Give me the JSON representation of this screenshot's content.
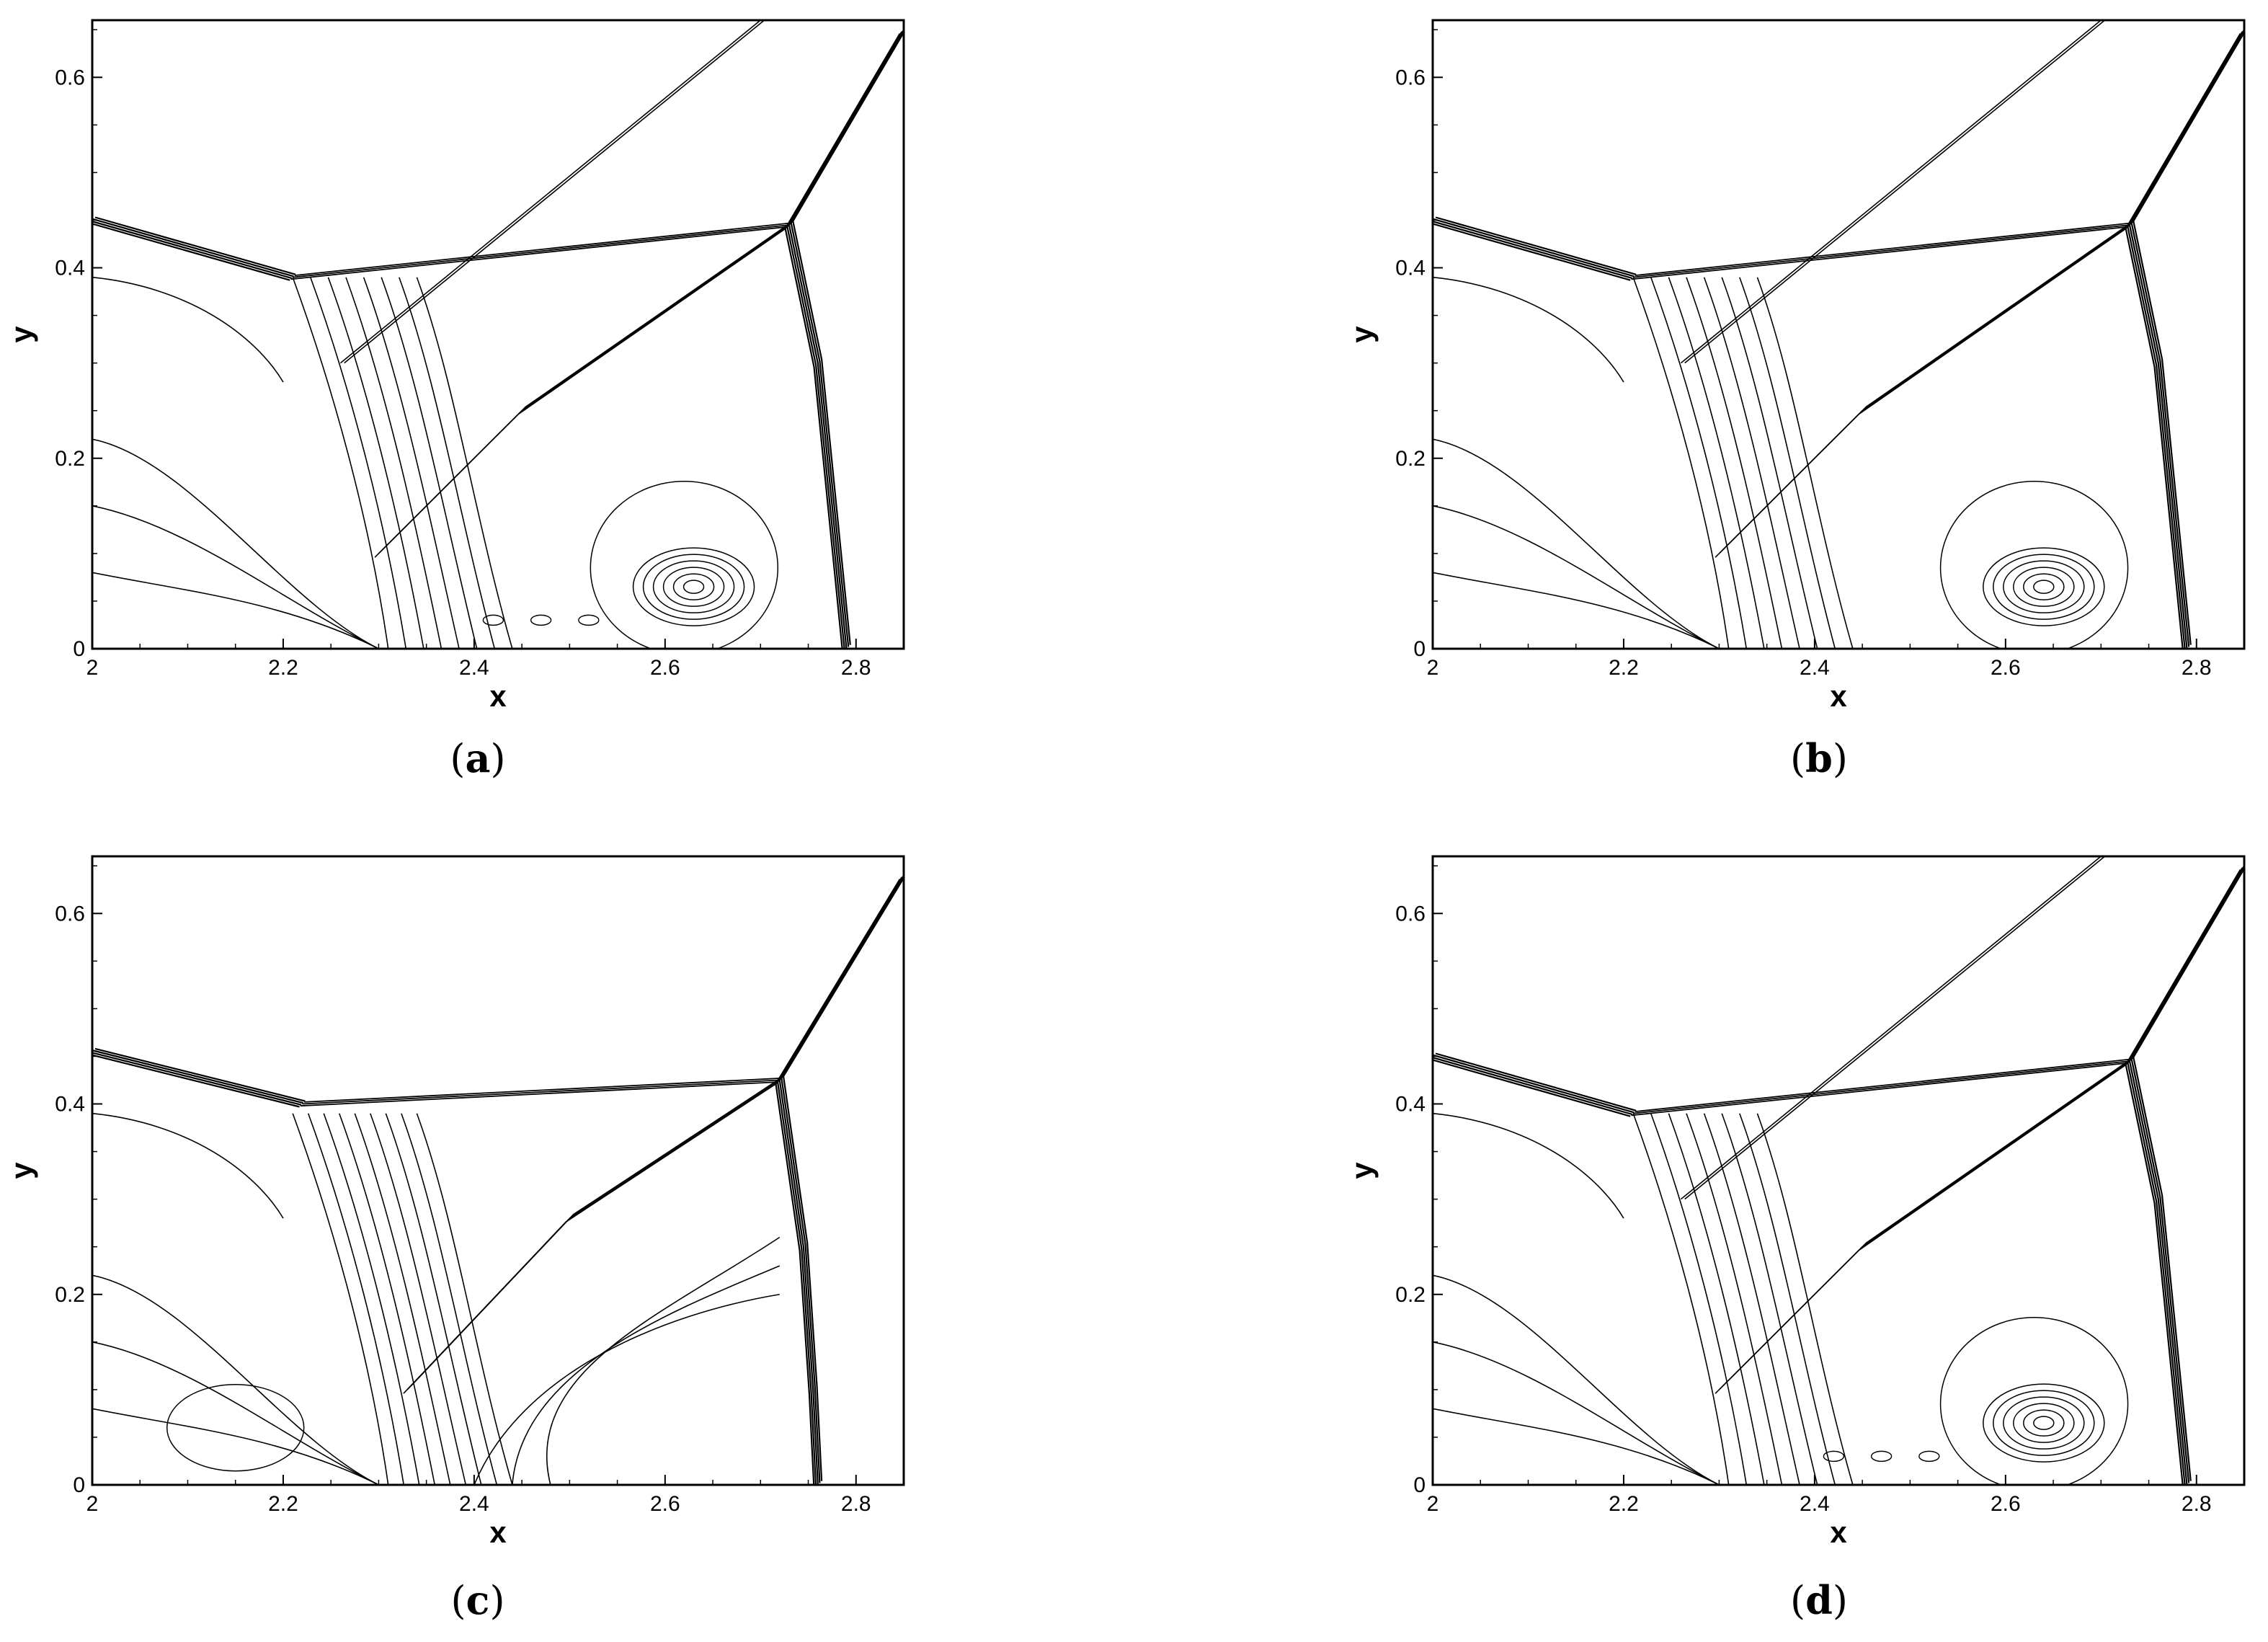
{
  "chart_data": [
    {
      "type": "contour",
      "panel_label": "a",
      "xlabel": "x",
      "ylabel": "y",
      "xlim": [
        2.0,
        2.85
      ],
      "ylim": [
        0.0,
        0.66
      ],
      "xticks": [
        "2",
        "2.2",
        "2.4",
        "2.6",
        "2.8"
      ],
      "yticks": [
        "0",
        "0.2",
        "0.4",
        "0.6"
      ],
      "features": {
        "incident_shock": [
          [
            2.0,
            0.45
          ],
          [
            2.21,
            0.39
          ]
        ],
        "reflected_shock": [
          [
            2.21,
            0.39
          ],
          [
            2.73,
            0.445
          ]
        ],
        "mach_stem": [
          [
            2.73,
            0.445
          ],
          [
            2.76,
            0.3
          ],
          [
            2.78,
            0.1
          ],
          [
            2.79,
            0.0
          ]
        ],
        "upper_shock": [
          [
            2.73,
            0.445
          ],
          [
            2.85,
            0.65
          ]
        ],
        "slip_line": [
          [
            2.73,
            0.445
          ],
          [
            2.45,
            0.25
          ],
          [
            2.3,
            0.1
          ]
        ],
        "vortex_center": [
          2.63,
          0.065
        ],
        "roll_up_vortices": true
      }
    },
    {
      "type": "contour",
      "panel_label": "b",
      "xlabel": "x",
      "ylabel": "y",
      "xlim": [
        2.0,
        2.85
      ],
      "ylim": [
        0.0,
        0.66
      ],
      "xticks": [
        "2",
        "2.2",
        "2.4",
        "2.6",
        "2.8"
      ],
      "yticks": [
        "0",
        "0.2",
        "0.4",
        "0.6"
      ],
      "features": {
        "incident_shock": [
          [
            2.0,
            0.45
          ],
          [
            2.21,
            0.39
          ]
        ],
        "reflected_shock": [
          [
            2.21,
            0.39
          ],
          [
            2.73,
            0.445
          ]
        ],
        "mach_stem": [
          [
            2.73,
            0.445
          ],
          [
            2.76,
            0.3
          ],
          [
            2.78,
            0.1
          ],
          [
            2.79,
            0.0
          ]
        ],
        "upper_shock": [
          [
            2.73,
            0.445
          ],
          [
            2.85,
            0.65
          ]
        ],
        "slip_line": [
          [
            2.73,
            0.445
          ],
          [
            2.45,
            0.25
          ],
          [
            2.3,
            0.1
          ]
        ],
        "vortex_center": [
          2.64,
          0.065
        ],
        "roll_up_vortices": false
      }
    },
    {
      "type": "contour",
      "panel_label": "c",
      "xlabel": "x",
      "ylabel": "y",
      "xlim": [
        2.0,
        2.85
      ],
      "ylim": [
        0.0,
        0.66
      ],
      "xticks": [
        "2",
        "2.2",
        "2.4",
        "2.6",
        "2.8"
      ],
      "yticks": [
        "0",
        "0.2",
        "0.4",
        "0.6"
      ],
      "features": {
        "incident_shock": [
          [
            2.0,
            0.455
          ],
          [
            2.22,
            0.4
          ]
        ],
        "reflected_shock": [
          [
            2.22,
            0.4
          ],
          [
            2.72,
            0.425
          ]
        ],
        "mach_stem": [
          [
            2.72,
            0.425
          ],
          [
            2.745,
            0.25
          ],
          [
            2.755,
            0.1
          ],
          [
            2.76,
            0.0
          ]
        ],
        "upper_shock": [
          [
            2.72,
            0.425
          ],
          [
            2.85,
            0.64
          ]
        ],
        "slip_line": [
          [
            2.72,
            0.425
          ],
          [
            2.5,
            0.28
          ],
          [
            2.33,
            0.1
          ]
        ],
        "vortex_center": null,
        "roll_up_vortices": false
      }
    },
    {
      "type": "contour",
      "panel_label": "d",
      "xlabel": "x",
      "ylabel": "y",
      "xlim": [
        2.0,
        2.85
      ],
      "ylim": [
        0.0,
        0.66
      ],
      "xticks": [
        "2",
        "2.2",
        "2.4",
        "2.6",
        "2.8"
      ],
      "yticks": [
        "0",
        "0.2",
        "0.4",
        "0.6"
      ],
      "features": {
        "incident_shock": [
          [
            2.0,
            0.45
          ],
          [
            2.21,
            0.39
          ]
        ],
        "reflected_shock": [
          [
            2.21,
            0.39
          ],
          [
            2.73,
            0.445
          ]
        ],
        "mach_stem": [
          [
            2.73,
            0.445
          ],
          [
            2.76,
            0.3
          ],
          [
            2.78,
            0.1
          ],
          [
            2.79,
            0.0
          ]
        ],
        "upper_shock": [
          [
            2.73,
            0.445
          ],
          [
            2.85,
            0.65
          ]
        ],
        "slip_line": [
          [
            2.73,
            0.445
          ],
          [
            2.45,
            0.25
          ],
          [
            2.3,
            0.1
          ]
        ],
        "vortex_center": [
          2.64,
          0.065
        ],
        "roll_up_vortices": true
      }
    }
  ]
}
